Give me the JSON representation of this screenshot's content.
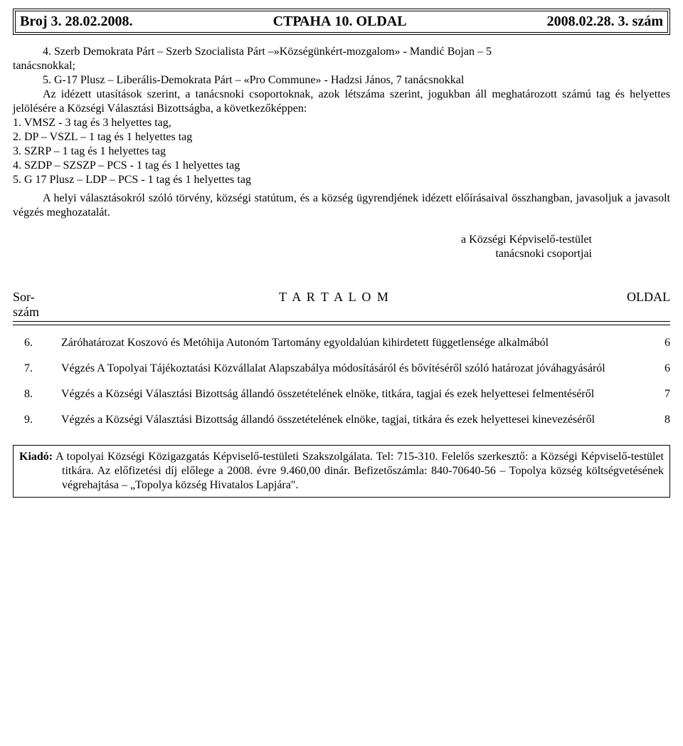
{
  "header": {
    "left": "Broj 3.    28.02.2008.",
    "center": "СТРАНА  10.  OLDAL",
    "right": "2008.02.28.       3. szám"
  },
  "intro": {
    "item4_line1": "4. Szerb Demokrata Párt – Szerb Szocialista Párt –»Községünkért-mozgalom» - Mandić Bojan – 5",
    "item4_line2": "tanácsnokkal;",
    "item5_line1": "5. G-17 Plusz – Liberális-Demokrata Párt – «Pro Commune» - Hadzsi János, 7 tanácsnokkal",
    "cont1": "Az idézett utasítások szerint, a tanácsnoki csoportoknak, azok létszáma szerint, jogukban áll meghatározott számú tag és helyettes jelölésére a Községi Választási Bizottságba, a következőképpen:",
    "l1": "1. VMSZ - 3 tag és 3 helyettes tag,",
    "l2": "2. DP – VSZL – 1 tag és 1 helyettes tag",
    "l3": "3. SZRP – 1 tag és 1 helyettes tag",
    "l4": "4. SZDP – SZSZP – PCS - 1 tag és 1 helyettes tag",
    "l5": "5. G 17 Plusz – LDP – PCS - 1 tag és 1 helyettes tag",
    "para2": "A helyi választásokról szóló törvény, községi statútum, és a község ügyrendjének idézett előírásaival összhangban, javasoljuk a javasolt végzés meghozatalát."
  },
  "signature": {
    "line1": "a Községi Képviselő-testület",
    "line2": "tanácsnoki csoportjai"
  },
  "toc": {
    "head_left_l1": "Sor-",
    "head_left_l2": "szám",
    "head_center": "T A R T A L O M",
    "head_right": "OLDAL",
    "rows": [
      {
        "num": "6.",
        "desc": "Záróhatározat Koszovó és Metóhija Autonóm Tartomány egyoldalúan kihirdetett függetlensége alkalmából",
        "page": "6"
      },
      {
        "num": "7.",
        "desc": "Végzés A Topolyai Tájékoztatási Közvállalat Alapszabálya módosításáról és bővítéséről szóló határozat jóváhagyásáról",
        "page": "6"
      },
      {
        "num": "8.",
        "desc": "Végzés a Községi Választási Bizottság állandó összetételének elnöke, titkára, tagjai és ezek helyettesei felmentéséről",
        "page": "7"
      },
      {
        "num": "9.",
        "desc": "Végzés a Községi Választási Bizottság állandó összetételének elnöke, tagjai, titkára és ezek helyettesei kinevezéséről",
        "page": "8"
      }
    ]
  },
  "footer": {
    "label": "Kiadó:",
    "body": "A topolyai Községi Közigazgatás Képviselő-testületi Szakszolgálata. Tel: 715-310. Felelős szerkesztő: a Községi Képviselő-testület titkára. Az előfizetési díj előlege a 2008. évre  9.460,00 dinár. Befizetőszámla: 840-70640-56 – Topolya község költségvetésének végrehajtása – „Topolya község Hivatalos Lapjára\"."
  }
}
